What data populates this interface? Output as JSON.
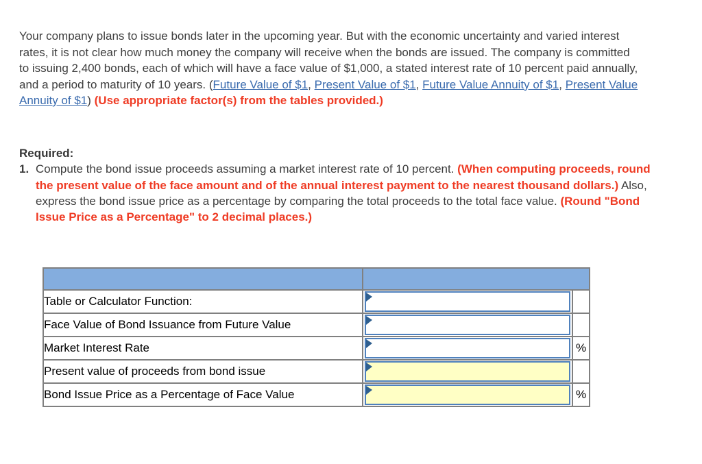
{
  "intro": {
    "lead": "Your company plans to issue bonds later in the upcoming year. But with the economic uncertainty and varied interest rates, it is not clear how much money the company will receive when the bonds are issued. The company is committed to issuing 2,400 bonds, each of which will have a face value of $1,000, a stated interest rate of 10 percent paid annually, and a period to maturity of 10 years. (",
    "link_future_value": "Future Value of $1",
    "sep1": ", ",
    "link_present_value": "Present Value of $1",
    "sep2": ", ",
    "link_future_value_annuity": "Future Value Annuity of $1",
    "sep3": ", ",
    "link_present_value_annuity": "Present Value Annuity of $1",
    "close_paren": ") ",
    "note": "(Use appropriate factor(s) from the tables provided.)"
  },
  "required": {
    "heading": "Required:",
    "item_number": "1.",
    "part1": "Compute the bond issue proceeds assuming a market interest rate of 10 percent. ",
    "note1": "(When computing proceeds, round the present value of the face amount and of the annual interest payment to the nearest thousand dollars.)",
    "part2": " Also, express the bond issue price as a percentage by comparing the total proceeds to the total face value. ",
    "note2": "(Round \"Bond Issue Price as a Percentage\" to 2 decimal places.)"
  },
  "table": {
    "header": {
      "label_column": "",
      "value_column": ""
    },
    "rows": [
      {
        "label": "Table or Calculator Function:",
        "input_value": "",
        "highlighted": false,
        "suffix": ""
      },
      {
        "label": "Face Value of Bond Issuance from Future Value",
        "input_value": "",
        "highlighted": false,
        "suffix": ""
      },
      {
        "label": "Market Interest Rate",
        "input_value": "",
        "highlighted": false,
        "suffix": "%"
      },
      {
        "label": "Present value of proceeds from bond issue",
        "input_value": "",
        "highlighted": true,
        "suffix": ""
      },
      {
        "label": "Bond Issue Price as a Percentage of Face Value",
        "input_value": "",
        "highlighted": true,
        "suffix": "%"
      }
    ]
  },
  "colors": {
    "body_text": "#3d3d3d",
    "link_blue": "#3a6bae",
    "note_red": "#ef3b24",
    "table_header_blue": "#84adde",
    "table_border_gray": "#808080",
    "input_border_blue": "#4f81bd",
    "input_marker_blue": "#2f5f8f",
    "highlight_yellow": "#ffffc5"
  }
}
